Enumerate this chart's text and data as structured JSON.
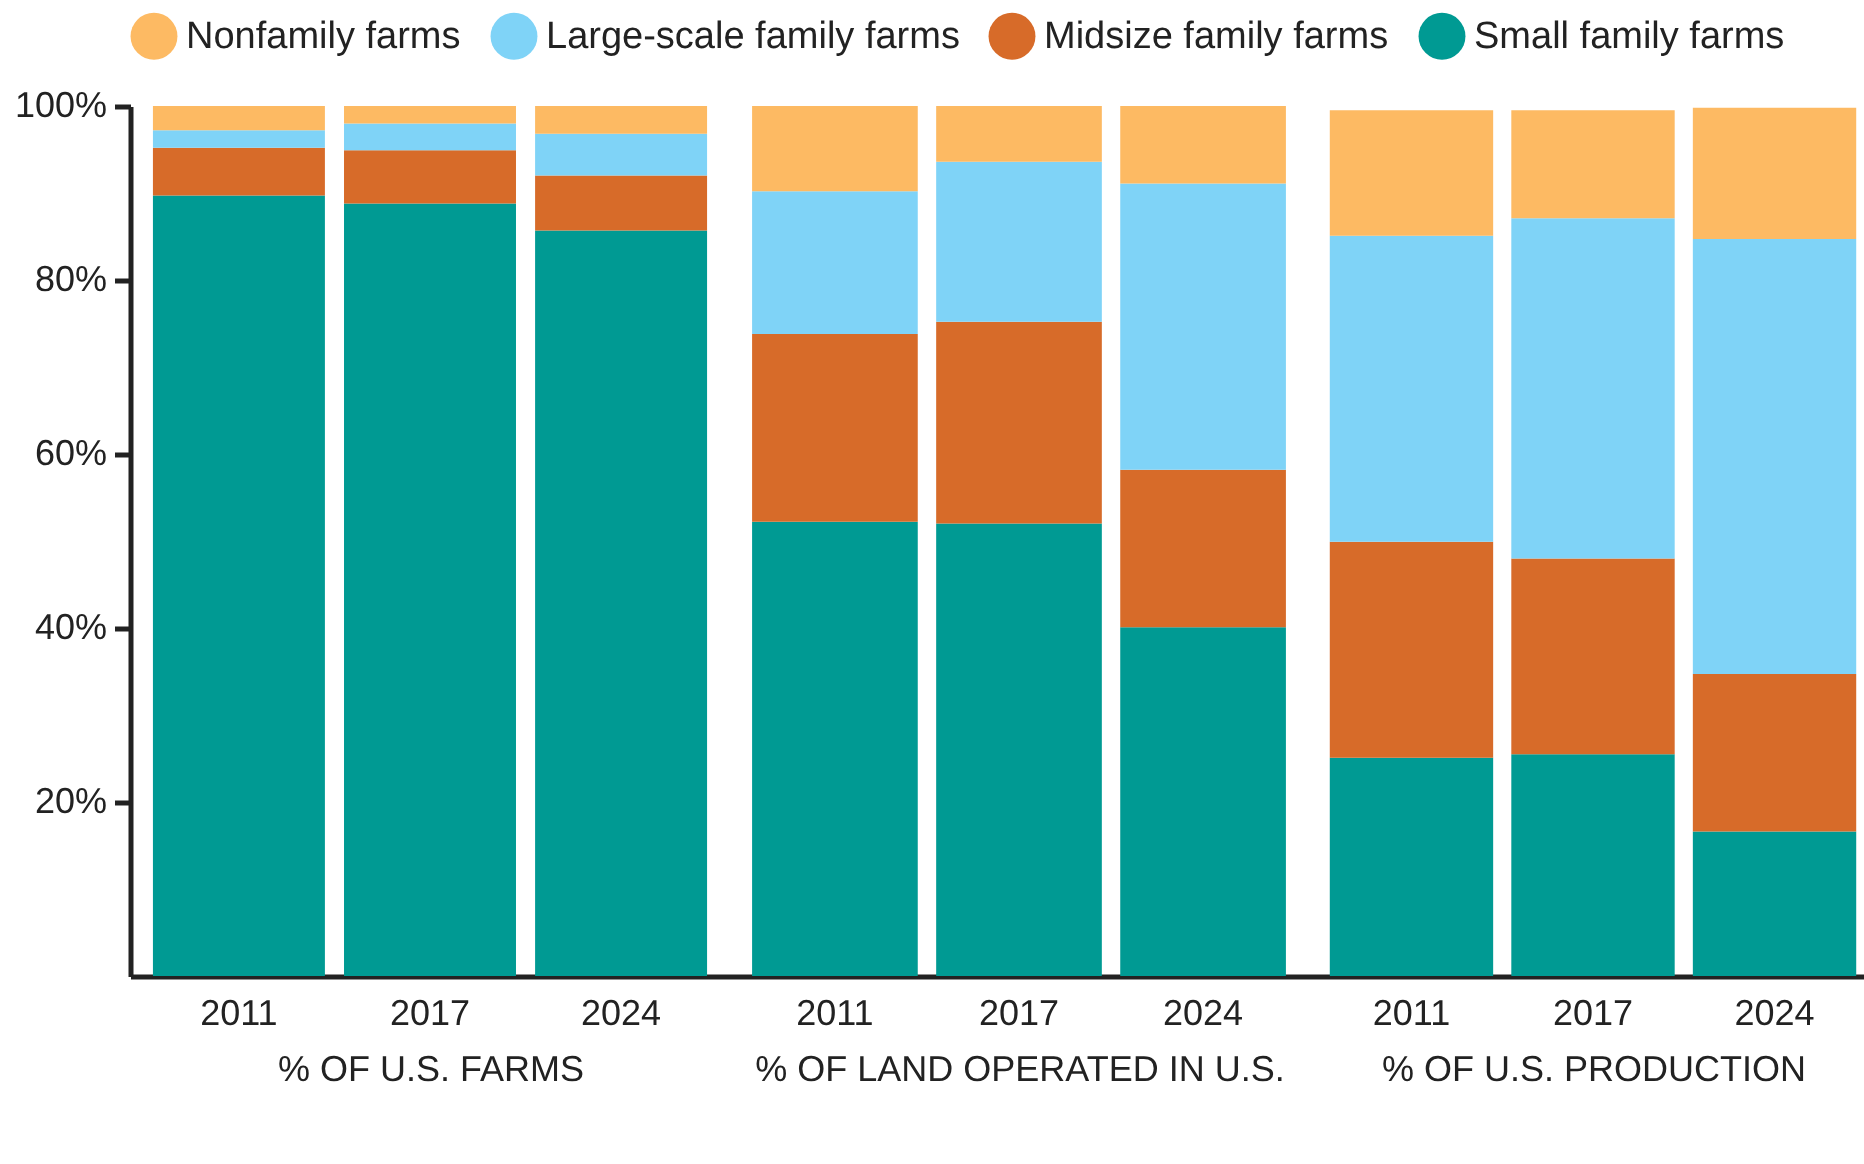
{
  "chart_data": [
    {
      "type": "bar",
      "stacked": true,
      "xlabel": "% OF U.S. FARMS",
      "categories": [
        "2011",
        "2017",
        "2024"
      ],
      "ylim": [
        0,
        100
      ],
      "yticks": [
        {
          "value": 20,
          "label": "20%"
        },
        {
          "value": 40,
          "label": "40%"
        },
        {
          "value": 60,
          "label": "60%"
        },
        {
          "value": 80,
          "label": "80%"
        },
        {
          "value": 100,
          "label": "100%"
        }
      ],
      "legend": "top",
      "series": [
        {
          "name": "Small family farms",
          "color": "#009a93",
          "values": [
            89.7,
            88.8,
            85.7
          ]
        },
        {
          "name": "Midsize family farms",
          "color": "#d76b29",
          "values": [
            5.5,
            6.1,
            6.3
          ]
        },
        {
          "name": "Large-scale family farms",
          "color": "#7fd3f7",
          "values": [
            2.0,
            3.1,
            4.8
          ]
        },
        {
          "name": "Nonfamily farms",
          "color": "#fdba63",
          "values": [
            2.8,
            2.0,
            3.2
          ]
        }
      ]
    },
    {
      "type": "bar",
      "stacked": true,
      "xlabel": "% OF LAND OPERATED IN U.S.",
      "categories": [
        "2011",
        "2017",
        "2024"
      ],
      "ylim": [
        0,
        100
      ],
      "tick_labels": "x",
      "series": [
        {
          "name": "Small family farms",
          "color": "#009a93",
          "values": [
            52.2,
            52.0,
            40.1
          ]
        },
        {
          "name": "Midsize family farms",
          "color": "#d76b29",
          "values": [
            21.6,
            23.2,
            18.1
          ]
        },
        {
          "name": "Large-scale family farms",
          "color": "#7fd3f7",
          "values": [
            16.4,
            18.4,
            32.9
          ]
        },
        {
          "name": "Nonfamily farms",
          "color": "#fdba63",
          "values": [
            9.8,
            6.4,
            8.9
          ]
        }
      ]
    },
    {
      "type": "bar",
      "stacked": true,
      "xlabel": "% OF U.S. PRODUCTION",
      "categories": [
        "2011",
        "2017",
        "2024"
      ],
      "ylim": [
        0,
        100
      ],
      "tick_labels": "x",
      "series": [
        {
          "name": "Small family farms",
          "color": "#009a93",
          "values": [
            25.1,
            25.5,
            16.6
          ]
        },
        {
          "name": "Midsize family farms",
          "color": "#d76b29",
          "values": [
            24.8,
            22.5,
            18.1
          ]
        },
        {
          "name": "Large-scale family farms",
          "color": "#7fd3f7",
          "values": [
            35.2,
            39.1,
            50.0
          ]
        },
        {
          "name": "Nonfamily farms",
          "color": "#fdba63",
          "values": [
            14.4,
            12.4,
            15.1
          ]
        }
      ]
    }
  ]
}
